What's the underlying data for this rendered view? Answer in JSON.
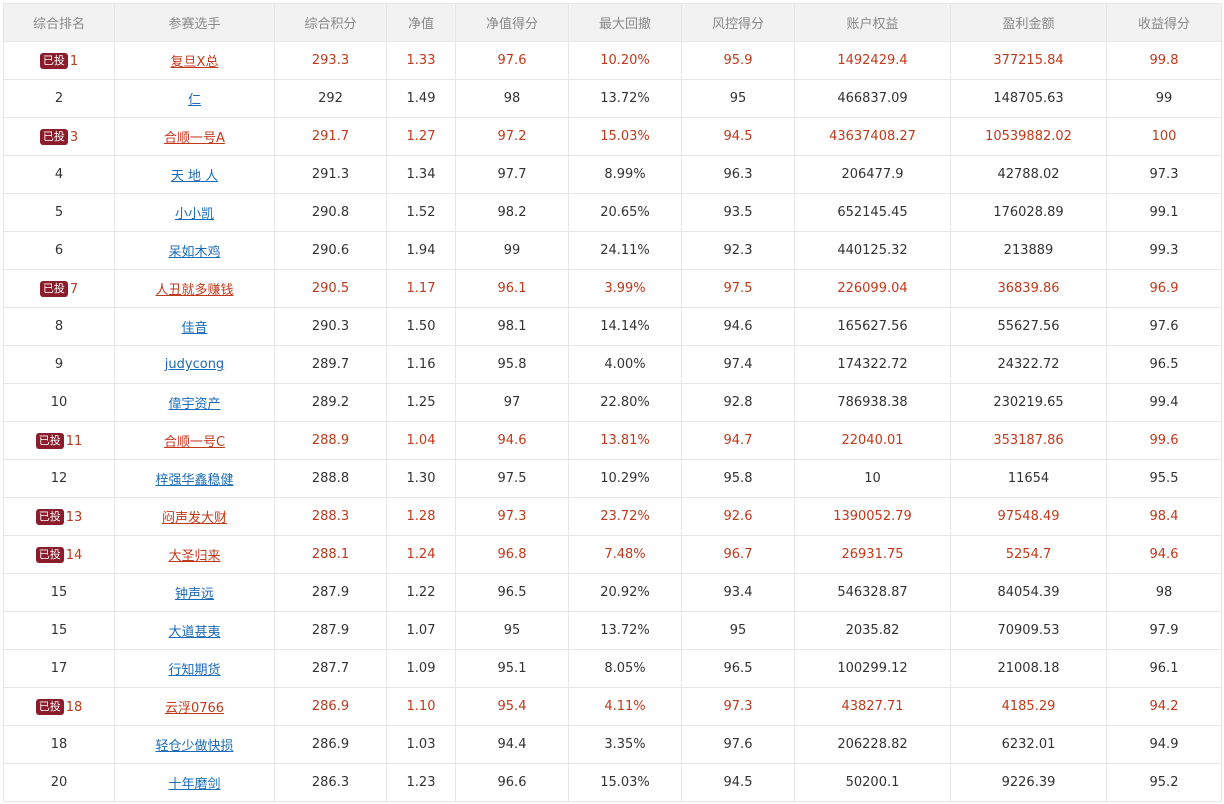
{
  "columns": [
    "综合排名",
    "参赛选手",
    "综合积分",
    "净值",
    "净值得分",
    "最大回撤",
    "风控得分",
    "账户权益",
    "盈利金额",
    "收益得分"
  ],
  "badge_label": "已投",
  "colors": {
    "invested_text": "#c0391b",
    "link": "#1a6bb8",
    "badge_bg": "#8b1c2c",
    "header_bg": "#f2f2f2"
  },
  "rows": [
    {
      "rank": "1",
      "invested": true,
      "name": "复旦X总",
      "score": "293.3",
      "nav": "1.33",
      "nav_score": "97.6",
      "drawdown": "10.20%",
      "risk_score": "95.9",
      "equity": "1492429.4",
      "profit": "377215.84",
      "return_score": "99.8"
    },
    {
      "rank": "2",
      "invested": false,
      "name": "仁",
      "score": "292",
      "nav": "1.49",
      "nav_score": "98",
      "drawdown": "13.72%",
      "risk_score": "95",
      "equity": "466837.09",
      "profit": "148705.63",
      "return_score": "99"
    },
    {
      "rank": "3",
      "invested": true,
      "name": "合顺一号A",
      "score": "291.7",
      "nav": "1.27",
      "nav_score": "97.2",
      "drawdown": "15.03%",
      "risk_score": "94.5",
      "equity": "43637408.27",
      "profit": "10539882.02",
      "return_score": "100"
    },
    {
      "rank": "4",
      "invested": false,
      "name": "天 地 人",
      "score": "291.3",
      "nav": "1.34",
      "nav_score": "97.7",
      "drawdown": "8.99%",
      "risk_score": "96.3",
      "equity": "206477.9",
      "profit": "42788.02",
      "return_score": "97.3"
    },
    {
      "rank": "5",
      "invested": false,
      "name": "小小凯",
      "score": "290.8",
      "nav": "1.52",
      "nav_score": "98.2",
      "drawdown": "20.65%",
      "risk_score": "93.5",
      "equity": "652145.45",
      "profit": "176028.89",
      "return_score": "99.1"
    },
    {
      "rank": "6",
      "invested": false,
      "name": "呆如木鸡",
      "score": "290.6",
      "nav": "1.94",
      "nav_score": "99",
      "drawdown": "24.11%",
      "risk_score": "92.3",
      "equity": "440125.32",
      "profit": "213889",
      "return_score": "99.3"
    },
    {
      "rank": "7",
      "invested": true,
      "name": "人丑就多赚钱",
      "score": "290.5",
      "nav": "1.17",
      "nav_score": "96.1",
      "drawdown": "3.99%",
      "risk_score": "97.5",
      "equity": "226099.04",
      "profit": "36839.86",
      "return_score": "96.9"
    },
    {
      "rank": "8",
      "invested": false,
      "name": "佳音",
      "score": "290.3",
      "nav": "1.50",
      "nav_score": "98.1",
      "drawdown": "14.14%",
      "risk_score": "94.6",
      "equity": "165627.56",
      "profit": "55627.56",
      "return_score": "97.6"
    },
    {
      "rank": "9",
      "invested": false,
      "name": "judycong",
      "score": "289.7",
      "nav": "1.16",
      "nav_score": "95.8",
      "drawdown": "4.00%",
      "risk_score": "97.4",
      "equity": "174322.72",
      "profit": "24322.72",
      "return_score": "96.5"
    },
    {
      "rank": "10",
      "invested": false,
      "name": "偉宇资产",
      "score": "289.2",
      "nav": "1.25",
      "nav_score": "97",
      "drawdown": "22.80%",
      "risk_score": "92.8",
      "equity": "786938.38",
      "profit": "230219.65",
      "return_score": "99.4"
    },
    {
      "rank": "11",
      "invested": true,
      "name": "合顺一号C",
      "score": "288.9",
      "nav": "1.04",
      "nav_score": "94.6",
      "drawdown": "13.81%",
      "risk_score": "94.7",
      "equity": "22040.01",
      "profit": "353187.86",
      "return_score": "99.6"
    },
    {
      "rank": "12",
      "invested": false,
      "name": "梓强华鑫稳健",
      "score": "288.8",
      "nav": "1.30",
      "nav_score": "97.5",
      "drawdown": "10.29%",
      "risk_score": "95.8",
      "equity": "10",
      "profit": "11654",
      "return_score": "95.5"
    },
    {
      "rank": "13",
      "invested": true,
      "name": "闷声发大财",
      "score": "288.3",
      "nav": "1.28",
      "nav_score": "97.3",
      "drawdown": "23.72%",
      "risk_score": "92.6",
      "equity": "1390052.79",
      "profit": "97548.49",
      "return_score": "98.4"
    },
    {
      "rank": "14",
      "invested": true,
      "name": "大圣归来",
      "score": "288.1",
      "nav": "1.24",
      "nav_score": "96.8",
      "drawdown": "7.48%",
      "risk_score": "96.7",
      "equity": "26931.75",
      "profit": "5254.7",
      "return_score": "94.6"
    },
    {
      "rank": "15",
      "invested": false,
      "name": "钟声远",
      "score": "287.9",
      "nav": "1.22",
      "nav_score": "96.5",
      "drawdown": "20.92%",
      "risk_score": "93.4",
      "equity": "546328.87",
      "profit": "84054.39",
      "return_score": "98"
    },
    {
      "rank": "15",
      "invested": false,
      "name": "大道甚夷",
      "score": "287.9",
      "nav": "1.07",
      "nav_score": "95",
      "drawdown": "13.72%",
      "risk_score": "95",
      "equity": "2035.82",
      "profit": "70909.53",
      "return_score": "97.9"
    },
    {
      "rank": "17",
      "invested": false,
      "name": "行知期货",
      "score": "287.7",
      "nav": "1.09",
      "nav_score": "95.1",
      "drawdown": "8.05%",
      "risk_score": "96.5",
      "equity": "100299.12",
      "profit": "21008.18",
      "return_score": "96.1"
    },
    {
      "rank": "18",
      "invested": true,
      "name": "云浮0766",
      "score": "286.9",
      "nav": "1.10",
      "nav_score": "95.4",
      "drawdown": "4.11%",
      "risk_score": "97.3",
      "equity": "43827.71",
      "profit": "4185.29",
      "return_score": "94.2"
    },
    {
      "rank": "18",
      "invested": false,
      "name": "轻仓少做快损",
      "score": "286.9",
      "nav": "1.03",
      "nav_score": "94.4",
      "drawdown": "3.35%",
      "risk_score": "97.6",
      "equity": "206228.82",
      "profit": "6232.01",
      "return_score": "94.9"
    },
    {
      "rank": "20",
      "invested": false,
      "name": "十年磨剑",
      "score": "286.3",
      "nav": "1.23",
      "nav_score": "96.6",
      "drawdown": "15.03%",
      "risk_score": "94.5",
      "equity": "50200.1",
      "profit": "9226.39",
      "return_score": "95.2"
    }
  ]
}
